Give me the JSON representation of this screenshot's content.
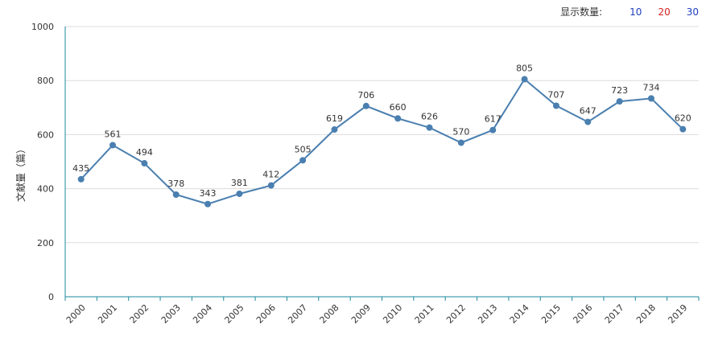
{
  "controls": {
    "label": "显示数量:",
    "options": [
      {
        "text": "10",
        "color": "#1f3fbf"
      },
      {
        "text": "20",
        "color": "#d42020"
      },
      {
        "text": "30",
        "color": "#1f3fbf"
      }
    ]
  },
  "colors": {
    "series": "#4a7fb0",
    "axis": "#1b8a9e",
    "grid": "#dcdcdc"
  },
  "chart_data": {
    "type": "line",
    "title": "",
    "xlabel": "",
    "ylabel": "文献量（篇）",
    "ylim": [
      0,
      1000
    ],
    "yticks": [
      0,
      200,
      400,
      600,
      800,
      1000
    ],
    "grid": true,
    "categories": [
      "2000",
      "2001",
      "2002",
      "2003",
      "2004",
      "2005",
      "2006",
      "2007",
      "2008",
      "2009",
      "2010",
      "2011",
      "2012",
      "2013",
      "2014",
      "2015",
      "2016",
      "2017",
      "2018",
      "2019"
    ],
    "series": [
      {
        "values": [
          435,
          561,
          494,
          378,
          343,
          381,
          412,
          505,
          619,
          706,
          660,
          626,
          570,
          617,
          805,
          707,
          647,
          723,
          734,
          620
        ]
      }
    ]
  }
}
